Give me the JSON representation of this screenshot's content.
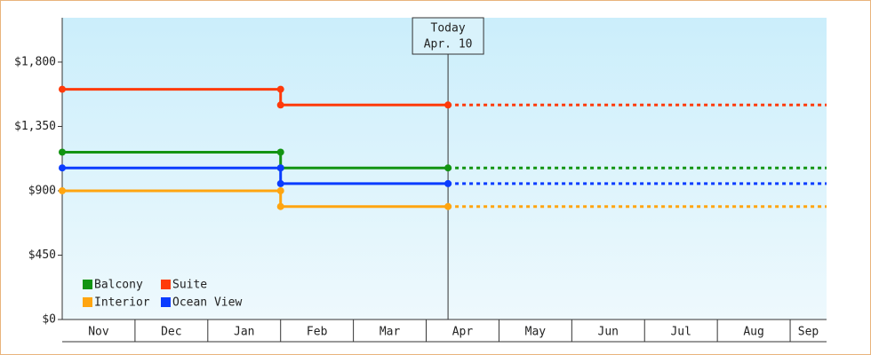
{
  "chart_data": {
    "type": "step-line",
    "categories": [
      "Nov",
      "Dec",
      "Jan",
      "Feb",
      "Mar",
      "Apr",
      "May",
      "Jun",
      "Jul",
      "Aug",
      "Sep"
    ],
    "x": [
      "Nov",
      "Feb",
      "Apr. 10"
    ],
    "ylim": [
      0,
      2110
    ],
    "yticks": [
      {
        "value": 0,
        "label": "$0"
      },
      {
        "value": 450,
        "label": "$450"
      },
      {
        "value": 900,
        "label": "$900"
      },
      {
        "value": 1350,
        "label": "$1,350"
      },
      {
        "value": 1800,
        "label": "$1,800"
      }
    ],
    "annotation": {
      "label": "Today",
      "date": "Apr. 10"
    },
    "series": [
      {
        "name": "Balcony",
        "color": "#129412",
        "values": [
          1170,
          1060,
          1060
        ]
      },
      {
        "name": "Suite",
        "color": "#ff3a0a",
        "values": [
          1610,
          1500,
          1500
        ]
      },
      {
        "name": "Interior",
        "color": "#ffa510",
        "values": [
          900,
          790,
          790
        ]
      },
      {
        "name": "Ocean View",
        "color": "#0a3cff",
        "values": [
          1060,
          950,
          950
        ]
      }
    ]
  }
}
